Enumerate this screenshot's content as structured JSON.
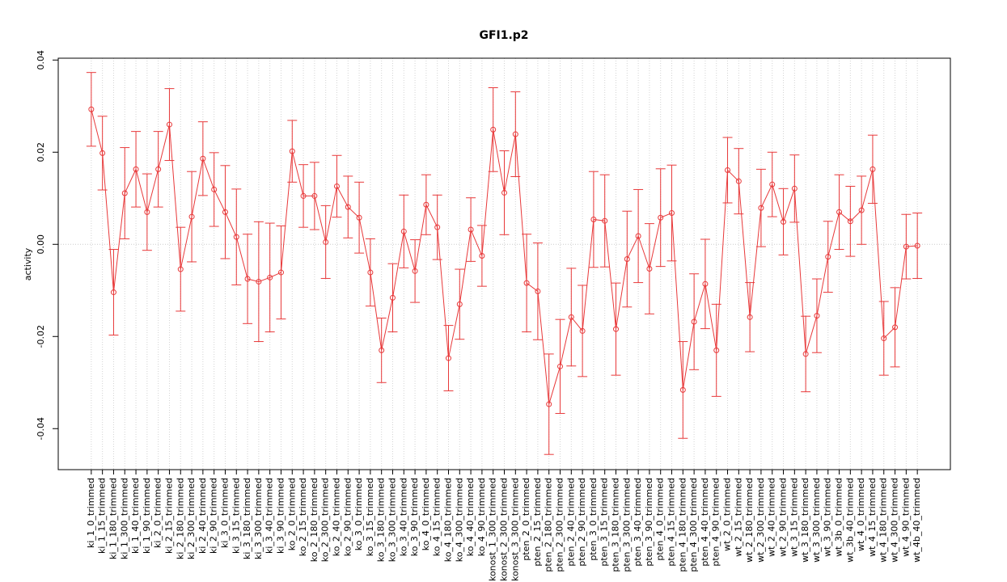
{
  "chart_data": {
    "type": "errorline",
    "title": "GFI1.p2",
    "y_label": "activity",
    "categories": [
      "ki_1_0_trimmed",
      "ki_1_15_trimmed",
      "ki_1_180_trimmed",
      "ki_1_300_trimmed",
      "ki_1_40_trimmed",
      "ki_1_90_trimmed",
      "ki_2_0_trimmed",
      "ki_2_15_trimmed",
      "ki_2_180_trimmed",
      "ki_2_300_trimmed",
      "ki_2_40_trimmed",
      "ki_2_90_trimmed",
      "ki_3_0_trimmed",
      "ki_3_15_trimmed",
      "ki_3_180_trimmed",
      "ki_3_300_trimmed",
      "ki_3_40_trimmed",
      "ki_3_90_trimmed",
      "ko_2_0_trimmed",
      "ko_2_15_trimmed",
      "ko_2_180_trimmed",
      "ko_2_300_trimmed",
      "ko_2_40_trimmed",
      "ko_2_90_trimmed",
      "ko_3_0_trimmed",
      "ko_3_15_trimmed",
      "ko_3_180_trimmed",
      "ko_3_300_trimmed",
      "ko_3_40_trimmed",
      "ko_3_90_trimmed",
      "ko_4_0_trimmed",
      "ko_4_15_trimmed",
      "ko_4_180_trimmed",
      "ko_4_300_trimmed",
      "ko_4_40_trimmed",
      "ko_4_90_trimmed",
      "konost_1_300_trimmed",
      "konost_2_300_trimmed",
      "konost_3_300_trimmed",
      "pten_2_0_trimmed",
      "pten_2_15_trimmed",
      "pten_2_180_trimmed",
      "pten_2_300_trimmed",
      "pten_2_40_trimmed",
      "pten_2_90_trimmed",
      "pten_3_0_trimmed",
      "pten_3_15_trimmed",
      "pten_3_180_trimmed",
      "pten_3_300_trimmed",
      "pten_3_40_trimmed",
      "pten_3_90_trimmed",
      "pten_4_0_trimmed",
      "pten_4_15_trimmed",
      "pten_4_180_trimmed",
      "pten_4_300_trimmed",
      "pten_4_40_trimmed",
      "pten_4_90_trimmed",
      "wt_2_0_trimmed",
      "wt_2_15_trimmed",
      "wt_2_180_trimmed",
      "wt_2_300_trimmed",
      "wt_2_40_trimmed",
      "wt_2_90_trimmed",
      "wt_3_15_trimmed",
      "wt_3_180_trimmed",
      "wt_3_300_trimmed",
      "wt_3_90_trimmed",
      "wt_3b_0_trimmed",
      "wt_3b_40_trimmed",
      "wt_4_0_trimmed",
      "wt_4_15_trimmed",
      "wt_4_180_trimmed",
      "wt_4_300_trimmed",
      "wt_4_90_trimmed",
      "wt_4b_40_trimmed"
    ],
    "values": [
      0.0293,
      0.0198,
      -0.0104,
      0.0111,
      0.0163,
      0.007,
      0.0163,
      0.026,
      -0.0054,
      0.006,
      0.0186,
      0.0119,
      0.007,
      0.0016,
      -0.0075,
      -0.0081,
      -0.0072,
      -0.0061,
      0.0202,
      0.0105,
      0.0105,
      0.0005,
      0.0126,
      0.0081,
      0.0058,
      -0.0061,
      -0.023,
      -0.0116,
      0.0028,
      -0.0058,
      0.0086,
      0.0037,
      -0.0247,
      -0.013,
      0.0032,
      -0.0025,
      0.0249,
      0.0112,
      0.0239,
      -0.0084,
      -0.0102,
      -0.0347,
      -0.0265,
      -0.0158,
      -0.0188,
      0.0054,
      0.0051,
      -0.0184,
      -0.0032,
      0.0018,
      -0.0053,
      0.0058,
      0.0068,
      -0.0316,
      -0.0168,
      -0.0086,
      -0.023,
      0.0161,
      0.0137,
      -0.0158,
      0.0079,
      0.013,
      0.0049,
      0.0121,
      -0.0238,
      -0.0155,
      -0.0027,
      0.007,
      0.005,
      0.0074,
      0.0163,
      -0.0204,
      -0.018,
      -0.0005,
      -0.0003
    ],
    "errors": [
      0.008,
      0.008,
      0.0093,
      0.0099,
      0.0082,
      0.0083,
      0.0082,
      0.0078,
      0.0091,
      0.0098,
      0.008,
      0.008,
      0.0101,
      0.0104,
      0.0097,
      0.013,
      0.0118,
      0.0101,
      0.0067,
      0.0068,
      0.0073,
      0.0079,
      0.0067,
      0.0067,
      0.0077,
      0.0073,
      0.007,
      0.0074,
      0.0079,
      0.0068,
      0.0065,
      0.007,
      0.0071,
      0.0076,
      0.0069,
      0.0066,
      0.0091,
      0.0091,
      0.0092,
      0.0106,
      0.0105,
      0.0109,
      0.0102,
      0.0106,
      0.0099,
      0.0104,
      0.01,
      0.01,
      0.0104,
      0.0101,
      0.0098,
      0.0106,
      0.0104,
      0.0105,
      0.0104,
      0.0097,
      0.01,
      0.0071,
      0.0071,
      0.0075,
      0.0084,
      0.007,
      0.0072,
      0.0073,
      0.0082,
      0.008,
      0.0077,
      0.0081,
      0.0076,
      0.0074,
      0.0074,
      0.008,
      0.0086,
      0.007,
      0.0071
    ],
    "color": "#e8393a",
    "ylim": [
      -0.0489,
      0.0404
    ],
    "yticks": [
      -0.04,
      -0.02,
      {
        "value": 0,
        "label": "0.00"
      },
      0.02,
      0.04
    ],
    "hline": 0,
    "grid": true
  }
}
